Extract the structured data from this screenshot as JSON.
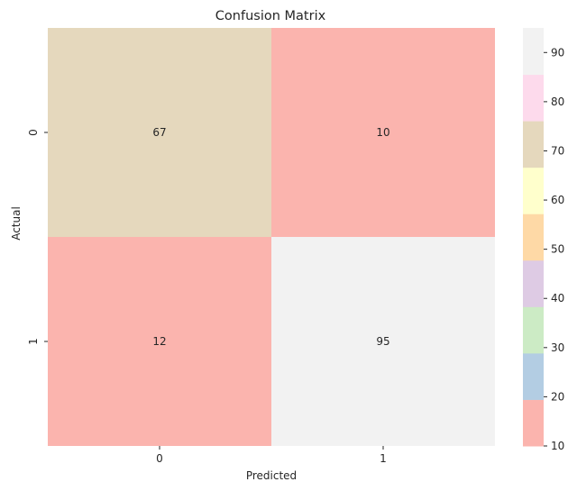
{
  "chart_data": {
    "type": "heatmap",
    "title": "Confusion Matrix",
    "xlabel": "Predicted",
    "ylabel": "Actual",
    "x_categories": [
      "0",
      "1"
    ],
    "y_categories": [
      "0",
      "1"
    ],
    "values": [
      [
        67,
        10
      ],
      [
        12,
        95
      ]
    ],
    "colorbar": {
      "ticks": [
        "10",
        "20",
        "30",
        "40",
        "50",
        "60",
        "70",
        "80",
        "90"
      ],
      "range": [
        10,
        95
      ],
      "colormap": "Pastel1",
      "colors": [
        "#fbb4ae",
        "#b3cde3",
        "#ccebc5",
        "#decbe4",
        "#fed9a6",
        "#ffffcc",
        "#e5d8bd",
        "#fddaec",
        "#f2f2f2"
      ]
    }
  }
}
